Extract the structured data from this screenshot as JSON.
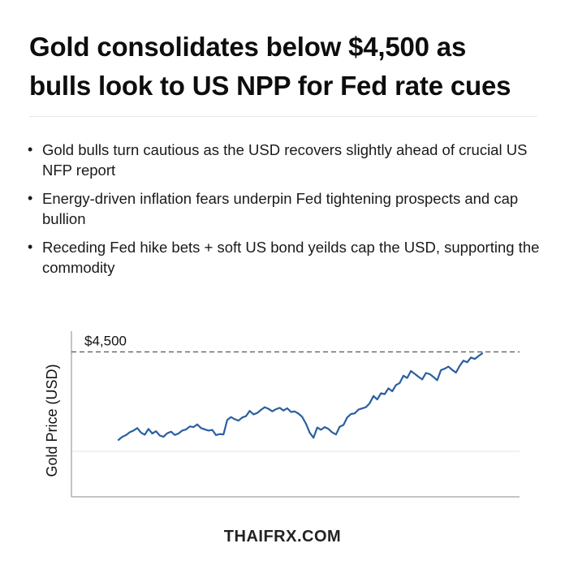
{
  "headline": {
    "line1": "Gold consolidates below $4,500 as",
    "line2": "bulls look to US NPP for Fed rate cues"
  },
  "bullets": [
    {
      "marker": "•",
      "text": "Gold bulls turn cautious as the USD recovers slightly ahead of crucial US NFP report"
    },
    {
      "marker": "•",
      "text": "Energy-driven inflation fears underpin Fed tightening prospects and cap bullion"
    },
    {
      "marker": "•",
      "text": "Receding Fed hike bets + soft US bond yeilds cap the USD, supporting the commodity"
    }
  ],
  "chart_data": {
    "type": "line",
    "title": "",
    "xlabel": "",
    "ylabel": "Gold Price (USD)",
    "ylim": [
      3800,
      4600
    ],
    "grid": true,
    "reference_line": {
      "value": 4500,
      "label": "$4,500",
      "style": "dashed"
    },
    "series": [
      {
        "color": "#2a5fa0",
        "values": [
          4075,
          4090,
          4098,
          4112,
          4120,
          4132,
          4110,
          4100,
          4128,
          4106,
          4117,
          4096,
          4090,
          4107,
          4115,
          4099,
          4106,
          4120,
          4125,
          4140,
          4137,
          4150,
          4132,
          4126,
          4120,
          4123,
          4098,
          4103,
          4101,
          4171,
          4185,
          4175,
          4168,
          4183,
          4190,
          4215,
          4198,
          4205,
          4220,
          4233,
          4225,
          4213,
          4223,
          4230,
          4217,
          4228,
          4210,
          4212,
          4202,
          4186,
          4153,
          4110,
          4085,
          4135,
          4124,
          4137,
          4128,
          4111,
          4101,
          4139,
          4147,
          4183,
          4200,
          4203,
          4221,
          4227,
          4233,
          4252,
          4287,
          4270,
          4300,
          4296,
          4324,
          4310,
          4340,
          4350,
          4385,
          4374,
          4408,
          4394,
          4380,
          4367,
          4398,
          4393,
          4379,
          4363,
          4412,
          4419,
          4429,
          4413,
          4400,
          4433,
          4458,
          4450,
          4473,
          4466,
          4480,
          4493
        ]
      }
    ]
  },
  "footer": {
    "source": "THAIFRX.COM"
  }
}
